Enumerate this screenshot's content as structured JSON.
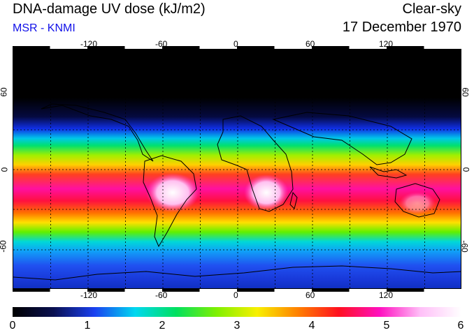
{
  "header": {
    "title": "DNA-damage UV dose (kJ/m2)",
    "source": "MSR - KNMI",
    "condition": "Clear-sky",
    "date": "17 December 1970"
  },
  "map": {
    "lon_ticks": [
      "-120",
      "-60",
      "0",
      "60",
      "120"
    ],
    "lat_ticks": [
      "60",
      "0",
      "-60"
    ],
    "lon_range": [
      -180,
      180
    ],
    "lat_range": [
      -90,
      90
    ],
    "grid": "dashed every 30 degrees"
  },
  "colorbar": {
    "labels": [
      "0",
      "1",
      "2",
      "3",
      "4",
      "5",
      "6"
    ],
    "range": [
      0,
      6
    ],
    "colors": [
      "#000000",
      "#0a1050",
      "#1a40f0",
      "#00d8f0",
      "#00e060",
      "#80f000",
      "#f8f000",
      "#ff8000",
      "#ff1020",
      "#ff10c0",
      "#ffc0f8",
      "#ffffff"
    ]
  }
}
